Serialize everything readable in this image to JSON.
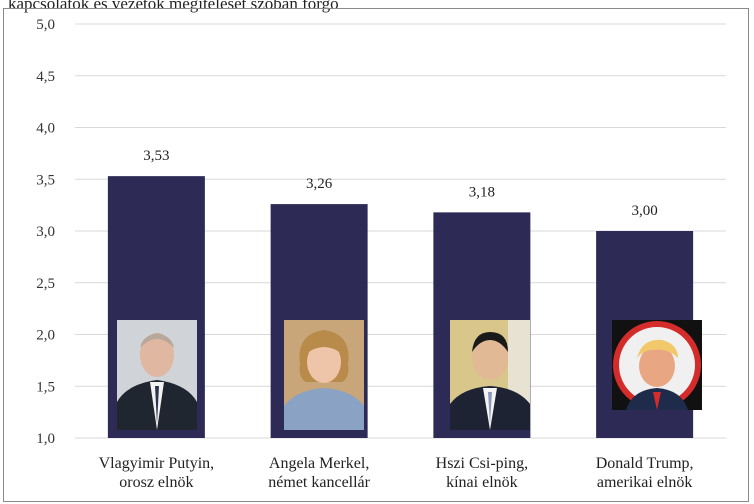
{
  "header": {
    "text": "kapcsolatok és vezetők megitélését szóban forgó"
  },
  "chart_data": {
    "type": "bar",
    "categories": [
      [
        "Vlagyimir Putyin,",
        "orosz elnök"
      ],
      [
        "Angela Merkel,",
        "német kancellár"
      ],
      [
        "Hszi Csi-ping,",
        "kínai elnök"
      ],
      [
        "Donald Trump,",
        "amerikai elnök"
      ]
    ],
    "values": [
      3.53,
      3.26,
      3.18,
      3.0
    ],
    "value_labels": [
      "3,53",
      "3,26",
      "3,18",
      "3,00"
    ],
    "ylim": [
      1.0,
      5.0
    ],
    "yticks": [
      "1,0",
      "1,5",
      "2,0",
      "2,5",
      "3,0",
      "3,5",
      "4,0",
      "4,5",
      "5,0"
    ],
    "grid": true,
    "colors": {
      "bar": "#2d2a56",
      "grid": "#d9d9d9"
    },
    "portraits": [
      "putin-portrait",
      "merkel-portrait",
      "xi-portrait",
      "trump-portrait"
    ]
  }
}
